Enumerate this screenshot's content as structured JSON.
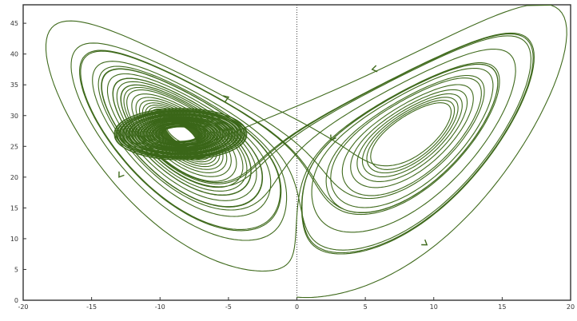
{
  "chart_data": {
    "type": "line",
    "title": "",
    "xlabel": "",
    "ylabel": "",
    "xlim": [
      -20,
      20
    ],
    "ylim": [
      0,
      48
    ],
    "x_ticks": [
      -20,
      -15,
      -10,
      -5,
      0,
      5,
      10,
      15,
      20
    ],
    "y_ticks": [
      0,
      5,
      10,
      15,
      20,
      25,
      30,
      35,
      40,
      45
    ],
    "x_tick_labels": [
      "-20",
      "-15",
      "-10",
      "-5",
      "0",
      "5",
      "10",
      "15",
      "20"
    ],
    "y_tick_labels": [
      "0",
      "5",
      "10",
      "15",
      "20",
      "25",
      "30",
      "35",
      "40",
      "45"
    ],
    "reference_line": {
      "x": 0,
      "style": "dotted"
    },
    "grid": false,
    "series": [
      {
        "line_color": "#3f6a1c",
        "fixed_points": [
          [
            -8.5,
            27
          ],
          [
            8.5,
            27
          ]
        ],
        "start_point": [
          0,
          0.5
        ]
      }
    ]
  }
}
